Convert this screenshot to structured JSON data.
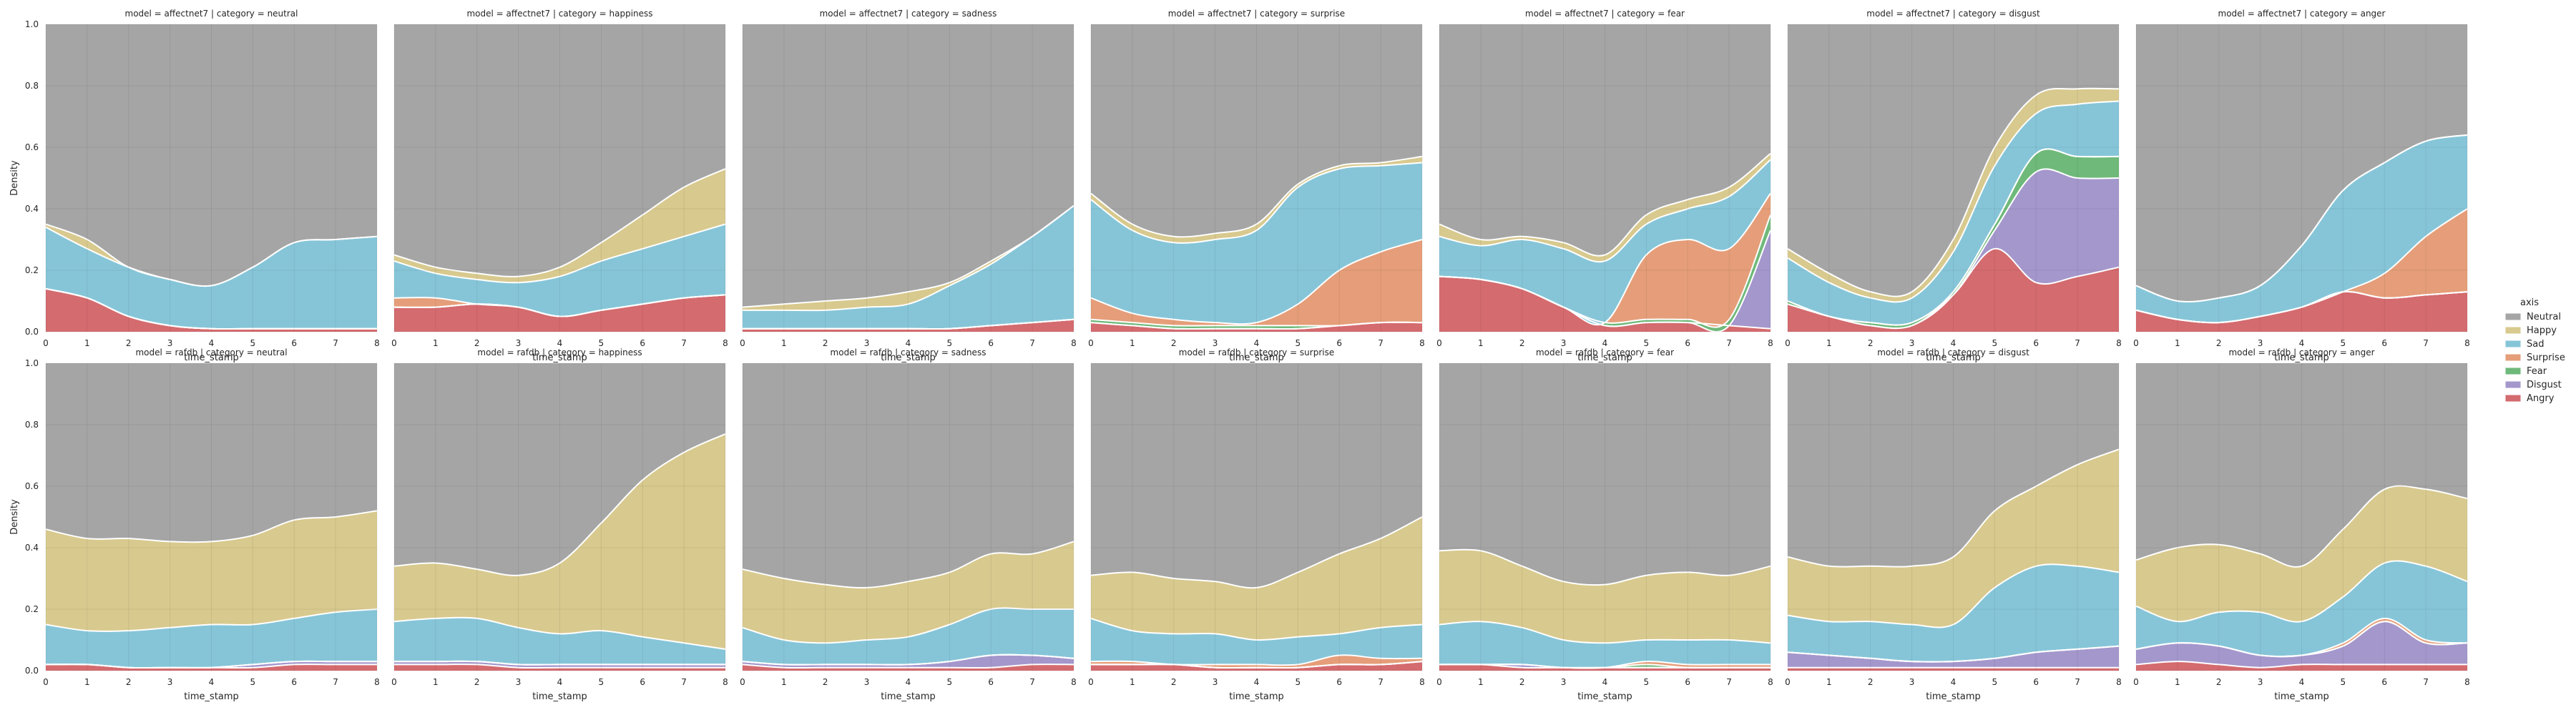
{
  "figure": {
    "legend_title": "axis",
    "xlabel": "time_stamp",
    "ylabel": "Density",
    "x_ticks": [
      0,
      1,
      2,
      3,
      4,
      5,
      6,
      7,
      8
    ],
    "y_ticks": [
      0.0,
      0.2,
      0.4,
      0.6,
      0.8,
      1.0
    ]
  },
  "chart_data": {
    "type": "area",
    "stacking": "cumulative (fill), Angry at bottom, Neutral on top",
    "xlabel": "time_stamp",
    "ylabel": "Density",
    "xlim": [
      0,
      8
    ],
    "ylim": [
      0,
      1
    ],
    "grid": true,
    "legend_placement": "right",
    "legend": [
      {
        "name": "Neutral",
        "color": "#a5a5a5"
      },
      {
        "name": "Happy",
        "color": "#d8c98e"
      },
      {
        "name": "Sad",
        "color": "#86c5d8"
      },
      {
        "name": "Surprise",
        "color": "#e59e79"
      },
      {
        "name": "Fear",
        "color": "#6fb97a"
      },
      {
        "name": "Disgust",
        "color": "#a497cc"
      },
      {
        "name": "Angry",
        "color": "#d46b6f"
      }
    ],
    "boundary_order": [
      "Angry",
      "Disgust",
      "Fear",
      "Surprise",
      "Sad",
      "Happy"
    ],
    "x": [
      0,
      1,
      2,
      3,
      4,
      5,
      6,
      7,
      8
    ],
    "panels": [
      {
        "title": "model = affectnet7 | category = neutral",
        "cumulative": [
          [
            0.14,
            0.11,
            0.05,
            0.02,
            0.01,
            0.01,
            0.01,
            0.01,
            0.01
          ],
          [
            0.14,
            0.11,
            0.05,
            0.02,
            0.01,
            0.01,
            0.01,
            0.01,
            0.01
          ],
          [
            0.14,
            0.11,
            0.05,
            0.02,
            0.01,
            0.01,
            0.01,
            0.01,
            0.01
          ],
          [
            0.14,
            0.11,
            0.05,
            0.02,
            0.01,
            0.01,
            0.01,
            0.01,
            0.01
          ],
          [
            0.34,
            0.27,
            0.21,
            0.17,
            0.15,
            0.21,
            0.29,
            0.3,
            0.31
          ],
          [
            0.35,
            0.3,
            0.21,
            0.17,
            0.15,
            0.21,
            0.29,
            0.3,
            0.31
          ]
        ]
      },
      {
        "title": "model = affectnet7 | category = happiness",
        "cumulative": [
          [
            0.08,
            0.08,
            0.09,
            0.08,
            0.05,
            0.07,
            0.09,
            0.11,
            0.12
          ],
          [
            0.08,
            0.08,
            0.09,
            0.08,
            0.05,
            0.07,
            0.09,
            0.11,
            0.12
          ],
          [
            0.08,
            0.08,
            0.09,
            0.08,
            0.05,
            0.07,
            0.09,
            0.11,
            0.12
          ],
          [
            0.11,
            0.11,
            0.09,
            0.08,
            0.05,
            0.07,
            0.09,
            0.11,
            0.12
          ],
          [
            0.23,
            0.19,
            0.17,
            0.16,
            0.18,
            0.23,
            0.27,
            0.31,
            0.35
          ],
          [
            0.25,
            0.21,
            0.19,
            0.18,
            0.21,
            0.29,
            0.38,
            0.47,
            0.53
          ]
        ]
      },
      {
        "title": "model = affectnet7 | category = sadness",
        "cumulative": [
          [
            0.01,
            0.01,
            0.01,
            0.01,
            0.01,
            0.01,
            0.02,
            0.03,
            0.04
          ],
          [
            0.01,
            0.01,
            0.01,
            0.01,
            0.01,
            0.01,
            0.02,
            0.03,
            0.04
          ],
          [
            0.01,
            0.01,
            0.01,
            0.01,
            0.01,
            0.01,
            0.02,
            0.03,
            0.04
          ],
          [
            0.01,
            0.01,
            0.01,
            0.01,
            0.01,
            0.01,
            0.02,
            0.03,
            0.04
          ],
          [
            0.07,
            0.07,
            0.07,
            0.08,
            0.09,
            0.15,
            0.22,
            0.31,
            0.41
          ],
          [
            0.08,
            0.09,
            0.1,
            0.11,
            0.13,
            0.16,
            0.23,
            0.31,
            0.41
          ]
        ]
      },
      {
        "title": "model = affectnet7 | category = surprise",
        "cumulative": [
          [
            0.03,
            0.02,
            0.01,
            0.01,
            0.01,
            0.01,
            0.02,
            0.03,
            0.03
          ],
          [
            0.03,
            0.02,
            0.01,
            0.01,
            0.01,
            0.01,
            0.02,
            0.03,
            0.03
          ],
          [
            0.04,
            0.03,
            0.02,
            0.02,
            0.02,
            0.02,
            0.02,
            0.03,
            0.03
          ],
          [
            0.11,
            0.06,
            0.04,
            0.03,
            0.03,
            0.09,
            0.2,
            0.26,
            0.3
          ],
          [
            0.43,
            0.33,
            0.29,
            0.3,
            0.33,
            0.47,
            0.53,
            0.54,
            0.55
          ],
          [
            0.45,
            0.35,
            0.31,
            0.32,
            0.35,
            0.48,
            0.54,
            0.55,
            0.57
          ]
        ]
      },
      {
        "title": "model = affectnet7 | category = fear",
        "cumulative": [
          [
            0.18,
            0.17,
            0.14,
            0.08,
            0.02,
            0.03,
            0.03,
            0.02,
            0.01
          ],
          [
            0.18,
            0.17,
            0.14,
            0.08,
            0.02,
            0.03,
            0.03,
            0.02,
            0.33
          ],
          [
            0.18,
            0.17,
            0.14,
            0.08,
            0.03,
            0.04,
            0.04,
            0.04,
            0.38
          ],
          [
            0.18,
            0.17,
            0.14,
            0.08,
            0.03,
            0.25,
            0.3,
            0.27,
            0.45
          ],
          [
            0.31,
            0.28,
            0.3,
            0.27,
            0.23,
            0.35,
            0.4,
            0.44,
            0.56
          ],
          [
            0.35,
            0.3,
            0.31,
            0.29,
            0.25,
            0.38,
            0.43,
            0.47,
            0.58
          ]
        ]
      },
      {
        "title": "model = affectnet7 | category = disgust",
        "cumulative": [
          [
            0.09,
            0.05,
            0.02,
            0.02,
            0.12,
            0.27,
            0.16,
            0.18,
            0.21
          ],
          [
            0.09,
            0.05,
            0.02,
            0.02,
            0.12,
            0.33,
            0.52,
            0.5,
            0.5
          ],
          [
            0.1,
            0.05,
            0.03,
            0.03,
            0.13,
            0.35,
            0.58,
            0.57,
            0.57
          ],
          [
            0.1,
            0.05,
            0.03,
            0.03,
            0.13,
            0.35,
            0.58,
            0.57,
            0.57
          ],
          [
            0.24,
            0.16,
            0.11,
            0.11,
            0.26,
            0.54,
            0.71,
            0.74,
            0.75
          ],
          [
            0.27,
            0.19,
            0.13,
            0.13,
            0.3,
            0.6,
            0.77,
            0.79,
            0.79
          ]
        ]
      },
      {
        "title": "model = affectnet7 | category = anger",
        "cumulative": [
          [
            0.07,
            0.04,
            0.03,
            0.05,
            0.08,
            0.13,
            0.11,
            0.12,
            0.13
          ],
          [
            0.07,
            0.04,
            0.03,
            0.05,
            0.08,
            0.13,
            0.11,
            0.12,
            0.13
          ],
          [
            0.07,
            0.04,
            0.03,
            0.05,
            0.08,
            0.13,
            0.11,
            0.12,
            0.13
          ],
          [
            0.07,
            0.04,
            0.03,
            0.05,
            0.08,
            0.13,
            0.19,
            0.31,
            0.4
          ],
          [
            0.15,
            0.1,
            0.11,
            0.15,
            0.28,
            0.46,
            0.55,
            0.62,
            0.64
          ],
          [
            0.15,
            0.1,
            0.11,
            0.15,
            0.28,
            0.46,
            0.55,
            0.62,
            0.64
          ]
        ]
      },
      {
        "title": "model = rafdb | category = neutral",
        "cumulative": [
          [
            0.02,
            0.02,
            0.01,
            0.01,
            0.01,
            0.01,
            0.02,
            0.02,
            0.02
          ],
          [
            0.02,
            0.02,
            0.01,
            0.01,
            0.01,
            0.02,
            0.03,
            0.03,
            0.03
          ],
          [
            0.02,
            0.02,
            0.01,
            0.01,
            0.01,
            0.02,
            0.03,
            0.03,
            0.03
          ],
          [
            0.02,
            0.02,
            0.01,
            0.01,
            0.01,
            0.02,
            0.03,
            0.03,
            0.03
          ],
          [
            0.15,
            0.13,
            0.13,
            0.14,
            0.15,
            0.15,
            0.17,
            0.19,
            0.2
          ],
          [
            0.46,
            0.43,
            0.43,
            0.42,
            0.42,
            0.44,
            0.49,
            0.5,
            0.52
          ]
        ]
      },
      {
        "title": "model = rafdb | category = happiness",
        "cumulative": [
          [
            0.02,
            0.02,
            0.02,
            0.01,
            0.01,
            0.01,
            0.01,
            0.01,
            0.01
          ],
          [
            0.03,
            0.03,
            0.03,
            0.02,
            0.02,
            0.02,
            0.02,
            0.02,
            0.02
          ],
          [
            0.03,
            0.03,
            0.03,
            0.02,
            0.02,
            0.02,
            0.02,
            0.02,
            0.02
          ],
          [
            0.03,
            0.03,
            0.03,
            0.02,
            0.02,
            0.02,
            0.02,
            0.02,
            0.02
          ],
          [
            0.16,
            0.17,
            0.17,
            0.14,
            0.12,
            0.13,
            0.11,
            0.09,
            0.07
          ],
          [
            0.34,
            0.35,
            0.33,
            0.31,
            0.35,
            0.48,
            0.62,
            0.71,
            0.77
          ]
        ]
      },
      {
        "title": "model = rafdb | category = sadness",
        "cumulative": [
          [
            0.02,
            0.01,
            0.01,
            0.01,
            0.01,
            0.01,
            0.01,
            0.02,
            0.02
          ],
          [
            0.03,
            0.02,
            0.02,
            0.02,
            0.02,
            0.03,
            0.05,
            0.05,
            0.04
          ],
          [
            0.03,
            0.02,
            0.02,
            0.02,
            0.02,
            0.03,
            0.05,
            0.05,
            0.04
          ],
          [
            0.03,
            0.02,
            0.02,
            0.02,
            0.02,
            0.03,
            0.05,
            0.05,
            0.04
          ],
          [
            0.14,
            0.1,
            0.09,
            0.1,
            0.11,
            0.15,
            0.2,
            0.2,
            0.2
          ],
          [
            0.33,
            0.3,
            0.28,
            0.27,
            0.29,
            0.32,
            0.38,
            0.38,
            0.42
          ]
        ]
      },
      {
        "title": "model = rafdb | category = surprise",
        "cumulative": [
          [
            0.02,
            0.02,
            0.02,
            0.01,
            0.01,
            0.01,
            0.02,
            0.02,
            0.03
          ],
          [
            0.02,
            0.02,
            0.02,
            0.01,
            0.01,
            0.01,
            0.02,
            0.02,
            0.03
          ],
          [
            0.02,
            0.02,
            0.02,
            0.01,
            0.01,
            0.01,
            0.02,
            0.02,
            0.03
          ],
          [
            0.03,
            0.03,
            0.02,
            0.02,
            0.02,
            0.02,
            0.05,
            0.04,
            0.04
          ],
          [
            0.17,
            0.13,
            0.12,
            0.12,
            0.1,
            0.11,
            0.12,
            0.14,
            0.15
          ],
          [
            0.31,
            0.32,
            0.3,
            0.29,
            0.27,
            0.32,
            0.38,
            0.43,
            0.5
          ]
        ]
      },
      {
        "title": "model = rafdb | category = fear",
        "cumulative": [
          [
            0.02,
            0.02,
            0.01,
            0.01,
            0.01,
            0.01,
            0.01,
            0.01,
            0.01
          ],
          [
            0.02,
            0.02,
            0.02,
            0.01,
            0.01,
            0.01,
            0.01,
            0.01,
            0.01
          ],
          [
            0.02,
            0.02,
            0.02,
            0.01,
            0.01,
            0.02,
            0.01,
            0.01,
            0.01
          ],
          [
            0.02,
            0.02,
            0.02,
            0.01,
            0.01,
            0.03,
            0.02,
            0.02,
            0.02
          ],
          [
            0.15,
            0.16,
            0.14,
            0.1,
            0.09,
            0.1,
            0.1,
            0.1,
            0.09
          ],
          [
            0.39,
            0.39,
            0.34,
            0.29,
            0.28,
            0.31,
            0.32,
            0.31,
            0.34
          ]
        ]
      },
      {
        "title": "model = rafdb | category = disgust",
        "cumulative": [
          [
            0.01,
            0.01,
            0.01,
            0.01,
            0.01,
            0.01,
            0.01,
            0.01,
            0.01
          ],
          [
            0.06,
            0.05,
            0.04,
            0.03,
            0.03,
            0.04,
            0.06,
            0.07,
            0.08
          ],
          [
            0.06,
            0.05,
            0.04,
            0.03,
            0.03,
            0.04,
            0.06,
            0.07,
            0.08
          ],
          [
            0.06,
            0.05,
            0.04,
            0.03,
            0.03,
            0.04,
            0.06,
            0.07,
            0.08
          ],
          [
            0.18,
            0.16,
            0.16,
            0.15,
            0.15,
            0.27,
            0.34,
            0.34,
            0.32
          ],
          [
            0.37,
            0.34,
            0.34,
            0.34,
            0.37,
            0.52,
            0.6,
            0.67,
            0.72
          ]
        ]
      },
      {
        "title": "model = rafdb | category = anger",
        "cumulative": [
          [
            0.02,
            0.03,
            0.02,
            0.01,
            0.02,
            0.02,
            0.02,
            0.02,
            0.02
          ],
          [
            0.07,
            0.09,
            0.08,
            0.05,
            0.05,
            0.08,
            0.16,
            0.09,
            0.09
          ],
          [
            0.07,
            0.09,
            0.08,
            0.05,
            0.05,
            0.08,
            0.16,
            0.09,
            0.09
          ],
          [
            0.07,
            0.09,
            0.08,
            0.05,
            0.05,
            0.09,
            0.17,
            0.1,
            0.09
          ],
          [
            0.21,
            0.16,
            0.19,
            0.19,
            0.16,
            0.24,
            0.35,
            0.34,
            0.29
          ],
          [
            0.36,
            0.4,
            0.41,
            0.38,
            0.34,
            0.46,
            0.59,
            0.59,
            0.56
          ]
        ]
      }
    ]
  }
}
